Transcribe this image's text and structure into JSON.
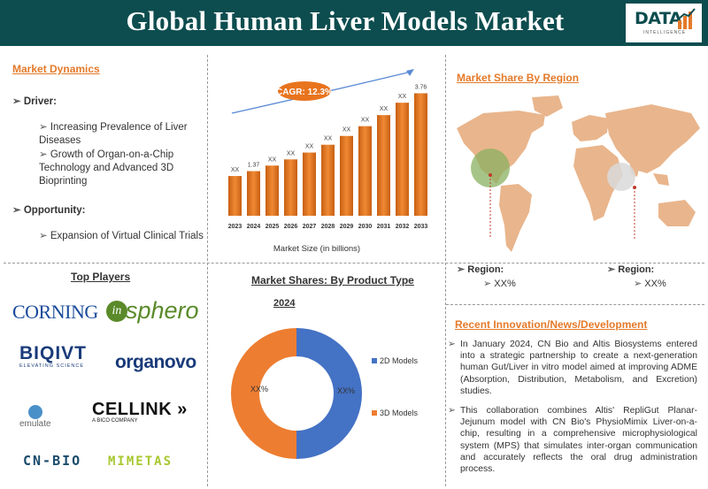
{
  "header": {
    "title": "Global Human Liver Models Market"
  },
  "logo": {
    "text": "DATA",
    "subtitle": "INTELLIGENCE"
  },
  "dynamics": {
    "title": "Market Dynamics",
    "driver_label": "Driver:",
    "drivers": [
      "Increasing Prevalence of Liver Diseases",
      "Growth of Organ-on-a-Chip Technology and Advanced 3D Bioprinting"
    ],
    "opportunity_label": "Opportunity:",
    "opportunities": [
      "Expansion of Virtual Clinical Trials"
    ]
  },
  "market_size": {
    "cagr_label": "CAGR: 12.3%",
    "xlabel": "Market Size (in billions)"
  },
  "chart_data": [
    {
      "type": "bar",
      "categories": [
        "2023",
        "2024",
        "2025",
        "2026",
        "2027",
        "2028",
        "2029",
        "2030",
        "2031",
        "2032",
        "2033"
      ],
      "values": [
        1.22,
        1.37,
        1.54,
        1.73,
        1.94,
        2.18,
        2.45,
        2.75,
        3.09,
        3.47,
        3.76
      ],
      "data_labels": [
        "XX",
        "1.37",
        "XX",
        "XX",
        "XX",
        "XX",
        "XX",
        "XX",
        "XX",
        "XX",
        "3.76"
      ],
      "xlabel": "Market Size (in billions)",
      "bar_color": "#e8741e"
    },
    {
      "type": "pie",
      "title": "Market Shares: By Product Type",
      "year": "2024",
      "categories": [
        "2D Models",
        "3D Models"
      ],
      "values": [
        50,
        50
      ],
      "labels": [
        "XX%",
        "XX%"
      ],
      "colors": [
        "#4472c4",
        "#ed7d31"
      ]
    }
  ],
  "region": {
    "title": "Market Share By Region",
    "left_label": "Region:",
    "left_value": "XX%",
    "right_label": "Region:",
    "right_value": "XX%"
  },
  "players": {
    "title": "Top Players",
    "corning": "CORNING",
    "insphero": "sphero",
    "bioivt": "BIQIVT",
    "bioivt_sub": "ELEVATING SCIENCE",
    "organovo": "organovo",
    "emulate": "emulate",
    "cellink": "CELLINK",
    "cellink_sub": "A BICO COMPANY",
    "cnbio": "CN-BIO",
    "mimetas": "MIMETAS"
  },
  "product": {
    "title": "Market Shares: By Product Type",
    "year": "2024",
    "legend_2d": "2D Models",
    "legend_3d": "3D Models",
    "label_2d": "XX%",
    "label_3d": "XX%"
  },
  "news": {
    "title": "Recent Innovation/News/Development",
    "items": [
      "In January 2024, CN Bio and Altis Biosystems entered into a strategic partnership to create a next-generation human Gut/Liver in vitro model aimed at improving ADME (Absorption, Distribution, Metabolism, and Excretion) studies.",
      "This collaboration combines Altis' RepliGut Planar-Jejunum model with CN Bio's PhysioMimix Liver-on-a-chip, resulting in a comprehensive microphysiological system (MPS) that simulates inter-organ communication and accurately reflects the oral drug administration process."
    ]
  },
  "colors": {
    "header": "#0d4d4f",
    "accent": "#e47a2a",
    "bar": "#e8741e",
    "map": "#e9b58c"
  }
}
